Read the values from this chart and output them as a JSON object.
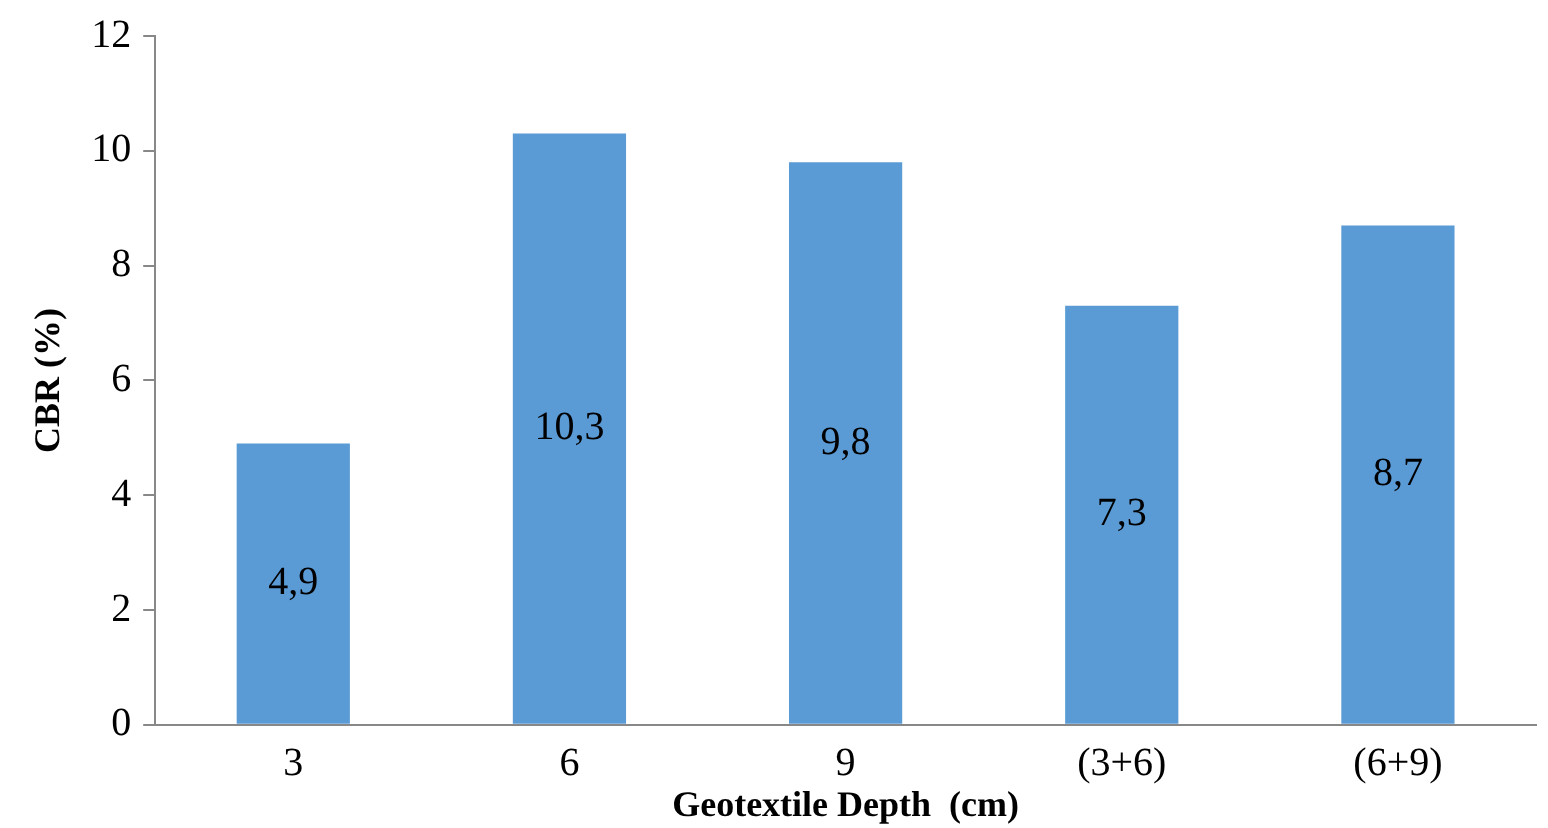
{
  "chart_data": {
    "type": "bar",
    "xlabel": "Geotextile Depth  (cm)",
    "ylabel": "CBR (%)",
    "categories": [
      "3",
      "6",
      "9",
      "(3+6)",
      "(6+9)"
    ],
    "values": [
      4.9,
      10.3,
      9.8,
      7.3,
      8.7
    ],
    "value_labels": [
      "4,9",
      "10,3",
      "9,8",
      "7,3",
      "8,7"
    ],
    "color": "#5b9bd5",
    "ylim": [
      0,
      12
    ],
    "yticks": [
      0,
      2,
      4,
      6,
      8,
      10,
      12
    ],
    "grid": false,
    "legend": false
  }
}
